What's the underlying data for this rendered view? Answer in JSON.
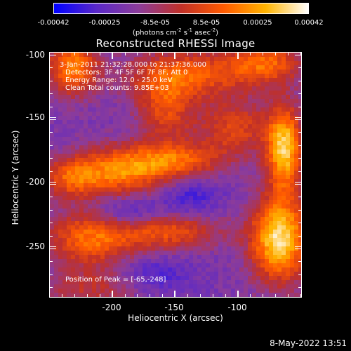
{
  "colorbar": {
    "ticks": [
      "-0.00042",
      "-0.00025",
      "-8.5e-05",
      "8.5e-05",
      "0.00025",
      "0.00042"
    ],
    "units_prefix": "(photons cm",
    "units_sup1": "-2",
    "units_mid1": " s",
    "units_sup2": "-1",
    "units_mid2": " asec",
    "units_sup3": "-2",
    "units_suffix": ")",
    "stops": [
      "#0000ff",
      "#5a28c8",
      "#8c3c9a",
      "#c03028",
      "#ff5a00",
      "#ffb400",
      "#ffffff"
    ]
  },
  "title": "Reconstructed RHESSI Image",
  "info": {
    "time": "3-Jan-2011 21:32:28.000 to 21:37:36.000",
    "detectors": "Detectors: 3F 4F 5F 6F 7F 8F, Att 0",
    "energy": "Energy Range: 12.0 - 25.0 keV",
    "clean": "Clean    Total counts: 9.85E+03",
    "peak": "Position of Peak = [-65,-248]"
  },
  "axes": {
    "xlabel": "Heliocentric X (arcsec)",
    "ylabel": "Heliocentric Y (arcsec)",
    "xticks": [
      "-200",
      "-150",
      "-100"
    ],
    "yticks": [
      "-100",
      "-150",
      "-200",
      "-250"
    ],
    "xlim": [
      -245,
      -52
    ],
    "ylim": [
      -288,
      -98
    ]
  },
  "timestamp": "8-May-2022 13:51"
}
